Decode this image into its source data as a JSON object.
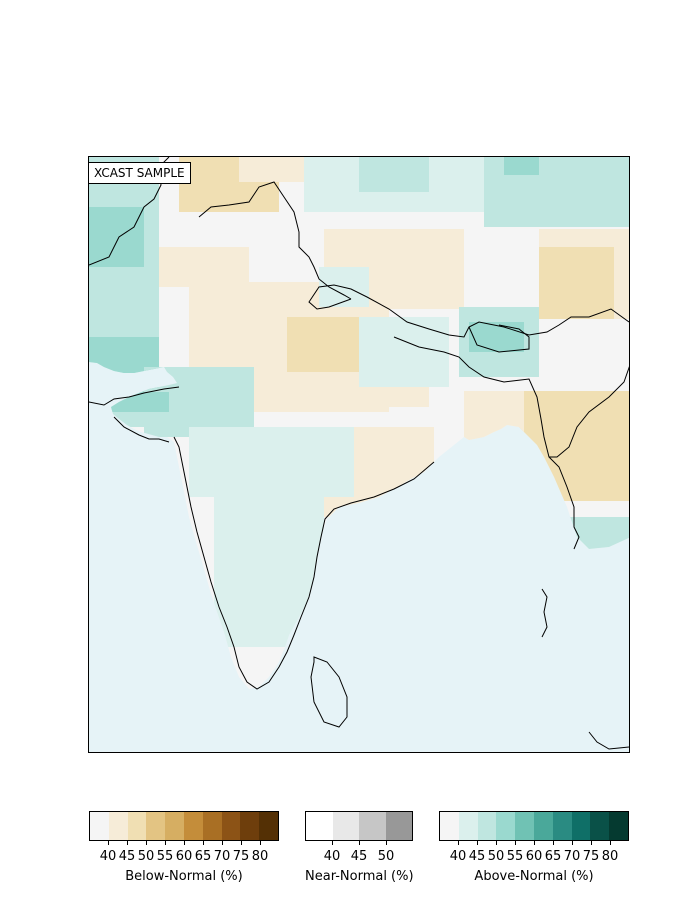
{
  "map": {
    "label": "XCAST SAMPLE",
    "ocean_color": "#e6f3f7",
    "coast_color": "#000000",
    "category_colors": {
      "below": [
        "#f5f5f5",
        "#f6ecd8",
        "#f0dfb3",
        "#e3c483",
        "#d6ae62",
        "#c48d3a",
        "#a96f24",
        "#8c5316",
        "#6e3e0c",
        "#543005"
      ],
      "near": [
        "#ffffff",
        "#e8e8e8",
        "#c6c6c6",
        "#989898"
      ],
      "above": [
        "#f5f5f5",
        "#dbf0ed",
        "#bfe6e0",
        "#9ad9cf",
        "#70c2b4",
        "#4aa89a",
        "#2a8b82",
        "#0f6f67",
        "#0a5148",
        "#053a30"
      ]
    }
  },
  "colorbars": {
    "below": {
      "title": "Below-Normal (%)",
      "ticks": [
        "40",
        "45",
        "50",
        "55",
        "60",
        "65",
        "70",
        "75",
        "80"
      ],
      "colors": [
        "#f5f5f5",
        "#f6ecd8",
        "#f0dfb3",
        "#e3c483",
        "#d6ae62",
        "#c48d3a",
        "#a96f24",
        "#8c5316",
        "#6e3e0c",
        "#543005"
      ]
    },
    "near": {
      "title": "Near-Normal (%)",
      "ticks": [
        "40",
        "45",
        "50"
      ],
      "colors": [
        "#ffffff",
        "#e8e8e8",
        "#c6c6c6",
        "#989898"
      ]
    },
    "above": {
      "title": "Above-Normal (%)",
      "ticks": [
        "40",
        "45",
        "50",
        "55",
        "60",
        "65",
        "70",
        "75",
        "80"
      ],
      "colors": [
        "#f5f5f5",
        "#dbf0ed",
        "#bfe6e0",
        "#9ad9cf",
        "#70c2b4",
        "#4aa89a",
        "#2a8b82",
        "#0f6f67",
        "#0a5148",
        "#053a30"
      ]
    }
  }
}
